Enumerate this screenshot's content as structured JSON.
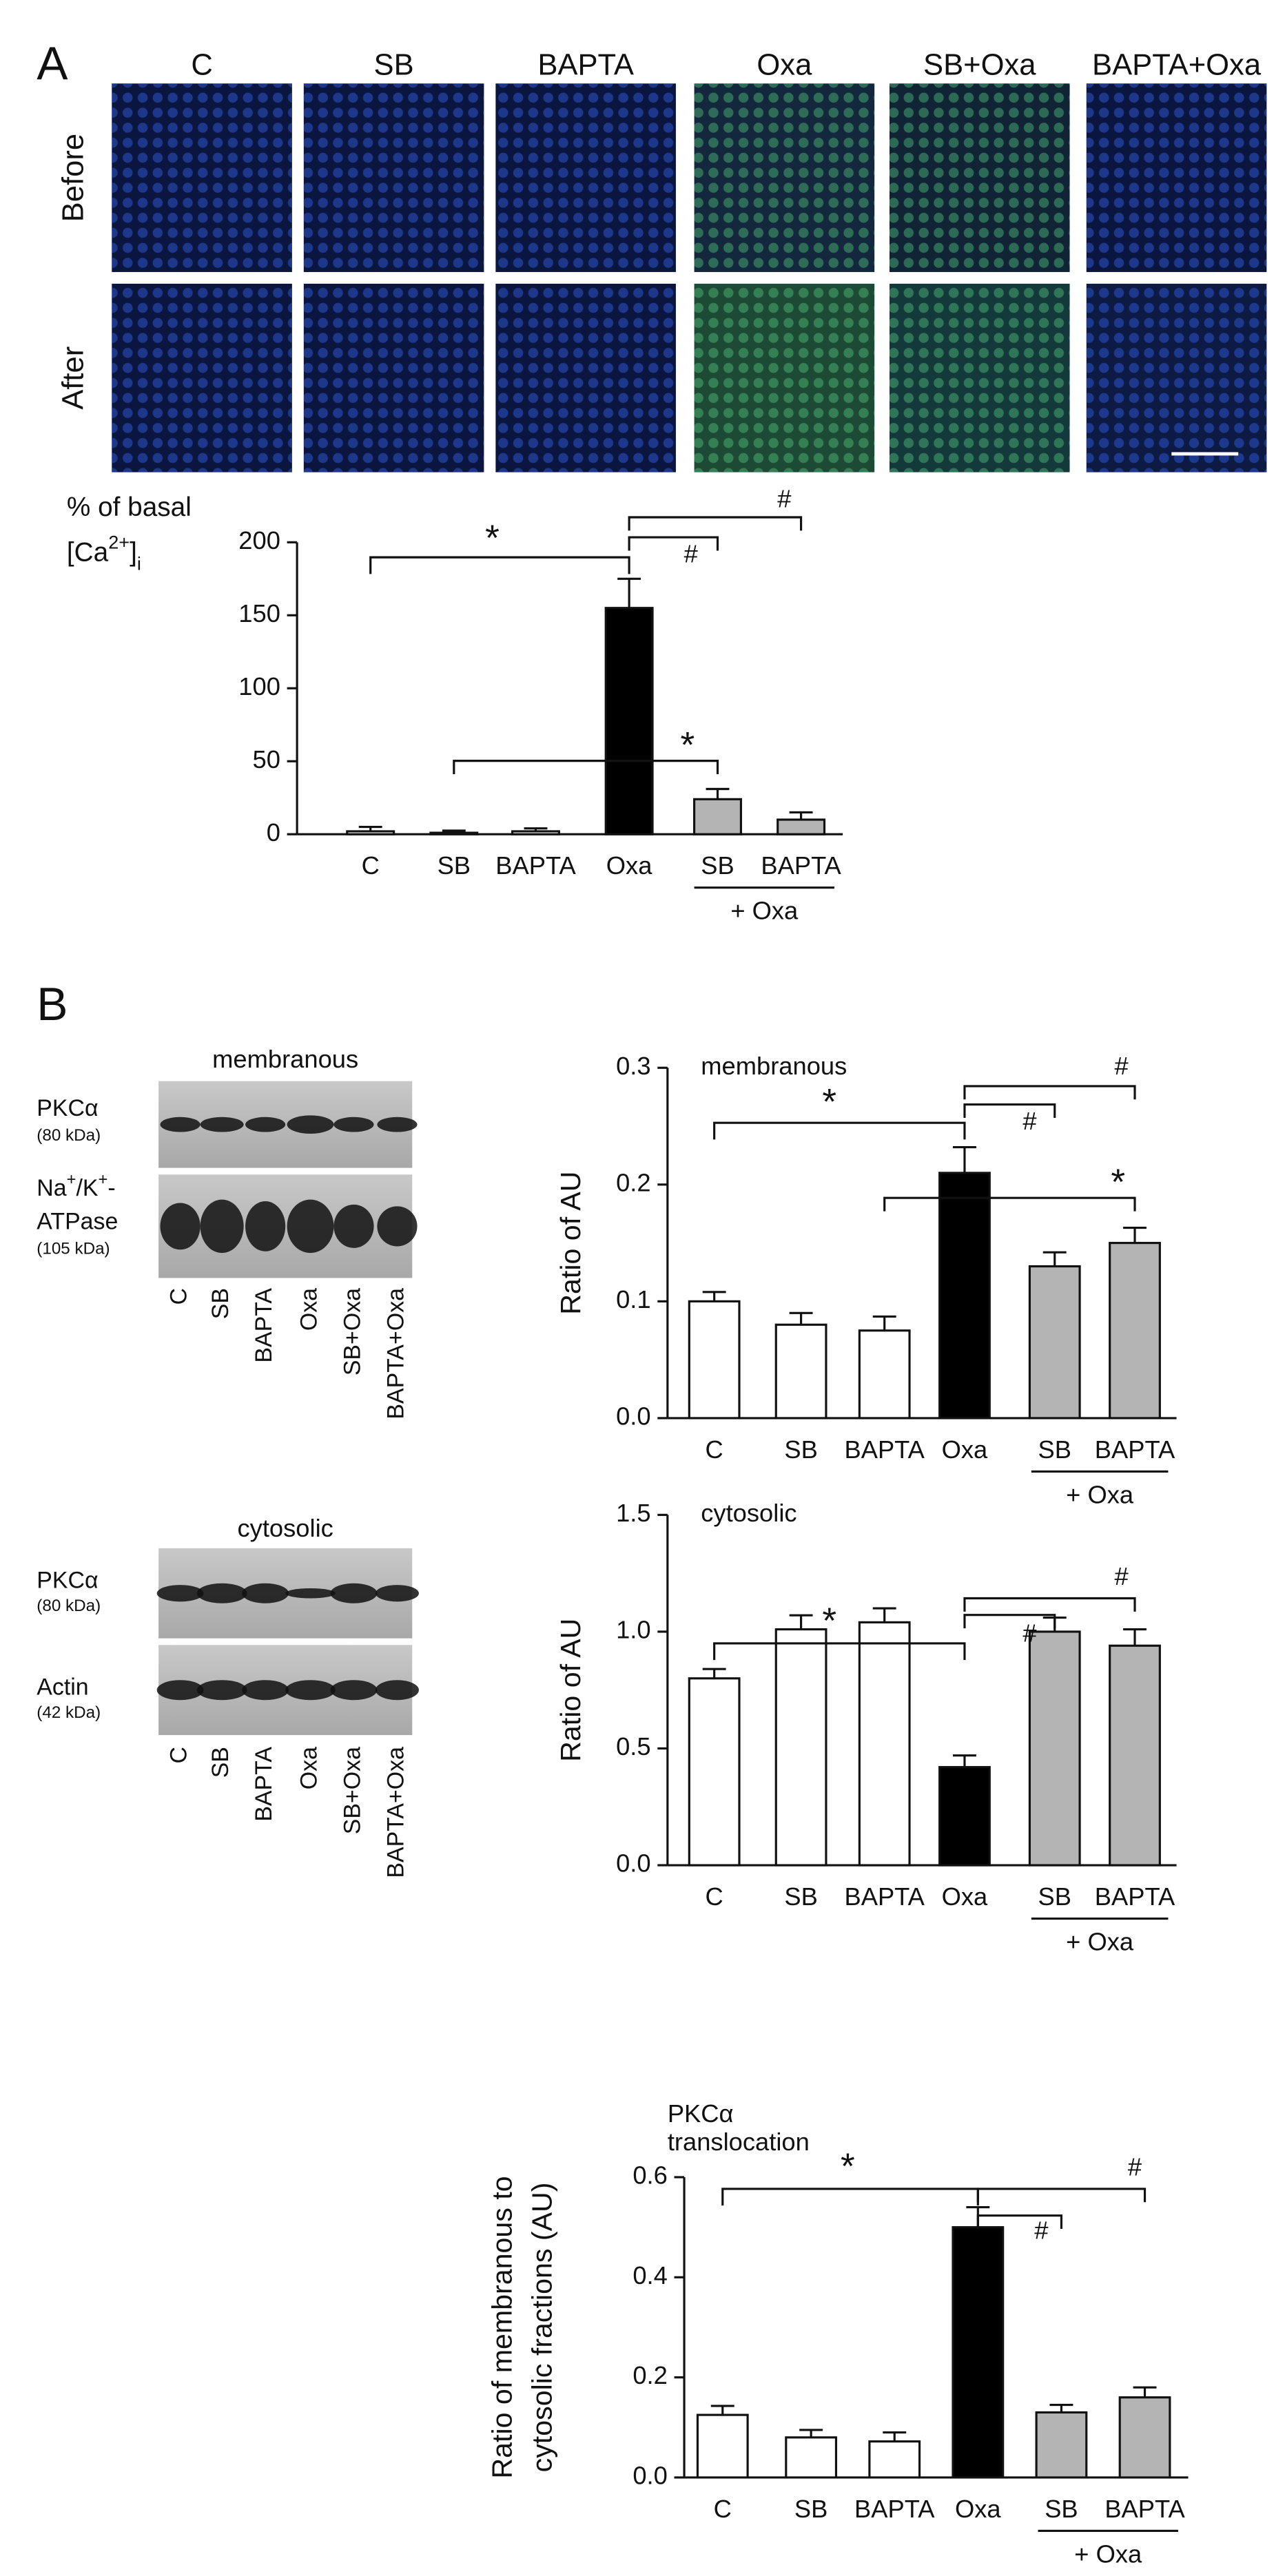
{
  "panel_labels": [
    "A",
    "B"
  ],
  "imaging": {
    "columns": [
      "C",
      "SB",
      "BAPTA",
      "Oxa",
      "SB+Oxa",
      "BAPTA+Oxa"
    ],
    "rows": [
      "Before",
      "After"
    ]
  },
  "blots": [
    {
      "title": "membranous",
      "proteins": [
        {
          "name": [
            [
              "PKCα"
            ]
          ],
          "size": "(80 kDa)"
        },
        {
          "name": [
            [
              "Na",
              "+",
              "/K",
              "+",
              "-"
            ],
            [
              "ATPase"
            ]
          ],
          "size": "(105 kDa)"
        }
      ],
      "lanes": [
        "C",
        "SB",
        "BAPTA",
        "Oxa",
        "SB+Oxa",
        "BAPTA+Oxa"
      ]
    },
    {
      "title": "cytosolic",
      "proteins": [
        {
          "name": [
            [
              "PKCα"
            ]
          ],
          "size": "(80 kDa)"
        },
        {
          "name": [
            [
              "Actin"
            ]
          ],
          "size": "(42 kDa)"
        }
      ],
      "lanes": [
        "C",
        "SB",
        "BAPTA",
        "Oxa",
        "SB+Oxa",
        "BAPTA+Oxa"
      ]
    }
  ],
  "chart_data": [
    {
      "type": "bar",
      "ylabel": [
        [
          "% of basal"
        ],
        [
          "[Ca",
          "2+",
          "]",
          "i"
        ]
      ],
      "categories": [
        "C",
        "SB",
        "BAPTA",
        "Oxa",
        "SB",
        "BAPTA"
      ],
      "group_label": "+ Oxa",
      "values": [
        2,
        1,
        2,
        155,
        24,
        10
      ],
      "errors": [
        3,
        1.5,
        2,
        20,
        7,
        5
      ],
      "colors": [
        "#ffffff",
        "#ffffff",
        "#ffffff",
        "#000000",
        "#b4b4b4",
        "#b4b4b4"
      ],
      "ylim": [
        0,
        200
      ],
      "yticks": [
        0,
        50,
        100,
        150,
        200
      ],
      "annotations": [
        "*",
        "#",
        "#",
        "*"
      ]
    },
    {
      "type": "bar",
      "label": [
        "membranous"
      ],
      "ylabel": [
        [
          "Ratio of AU"
        ]
      ],
      "categories": [
        "C",
        "SB",
        "BAPTA",
        "Oxa",
        "SB",
        "BAPTA"
      ],
      "group_label": "+ Oxa",
      "values": [
        0.1,
        0.08,
        0.075,
        0.21,
        0.13,
        0.15
      ],
      "errors": [
        0.008,
        0.01,
        0.012,
        0.022,
        0.012,
        0.013
      ],
      "colors": [
        "#ffffff",
        "#ffffff",
        "#ffffff",
        "#000000",
        "#b4b4b4",
        "#b4b4b4"
      ],
      "ylim": [
        0,
        0.3
      ],
      "yticks": [
        {
          "value": 0,
          "label": "0.0"
        },
        {
          "value": 0.1,
          "label": "0.1"
        },
        {
          "value": 0.2,
          "label": "0.2"
        },
        {
          "value": 0.3,
          "label": "0.3"
        }
      ],
      "annotations": [
        "*",
        "#",
        "#",
        "*"
      ]
    },
    {
      "type": "bar",
      "label": [
        "cytosolic"
      ],
      "ylabel": [
        [
          "Ratio of AU"
        ]
      ],
      "categories": [
        "C",
        "SB",
        "BAPTA",
        "Oxa",
        "SB",
        "BAPTA"
      ],
      "group_label": "+ Oxa",
      "values": [
        0.8,
        1.01,
        1.04,
        0.42,
        1.0,
        0.94
      ],
      "errors": [
        0.04,
        0.06,
        0.06,
        0.05,
        0.06,
        0.07
      ],
      "colors": [
        "#ffffff",
        "#ffffff",
        "#ffffff",
        "#000000",
        "#b4b4b4",
        "#b4b4b4"
      ],
      "ylim": [
        0,
        1.5
      ],
      "yticks": [
        {
          "value": 0,
          "label": "0.0"
        },
        {
          "value": 0.5,
          "label": "0.5"
        },
        {
          "value": 1,
          "label": "1.0"
        },
        {
          "value": 1.5,
          "label": "1.5"
        }
      ],
      "annotations": [
        "*",
        "#",
        "#"
      ]
    },
    {
      "type": "bar",
      "label": [
        "PKCα",
        "translocation"
      ],
      "ylabel": [
        [
          "Ratio of membranous to"
        ],
        [
          "cytosolic fractions (AU)"
        ]
      ],
      "categories": [
        "C",
        "SB",
        "BAPTA",
        "Oxa",
        "SB",
        "BAPTA"
      ],
      "group_label": "+ Oxa",
      "values": [
        0.125,
        0.08,
        0.072,
        0.5,
        0.13,
        0.16
      ],
      "errors": [
        0.018,
        0.015,
        0.018,
        0.04,
        0.015,
        0.02
      ],
      "colors": [
        "#ffffff",
        "#ffffff",
        "#ffffff",
        "#000000",
        "#b4b4b4",
        "#b4b4b4"
      ],
      "ylim": [
        0,
        0.6
      ],
      "yticks": [
        {
          "value": 0,
          "label": "0.0"
        },
        {
          "value": 0.2,
          "label": "0.2"
        },
        {
          "value": 0.4,
          "label": "0.4"
        },
        {
          "value": 0.6,
          "label": "0.6"
        }
      ],
      "annotations": [
        "*",
        "#",
        "#"
      ]
    }
  ]
}
